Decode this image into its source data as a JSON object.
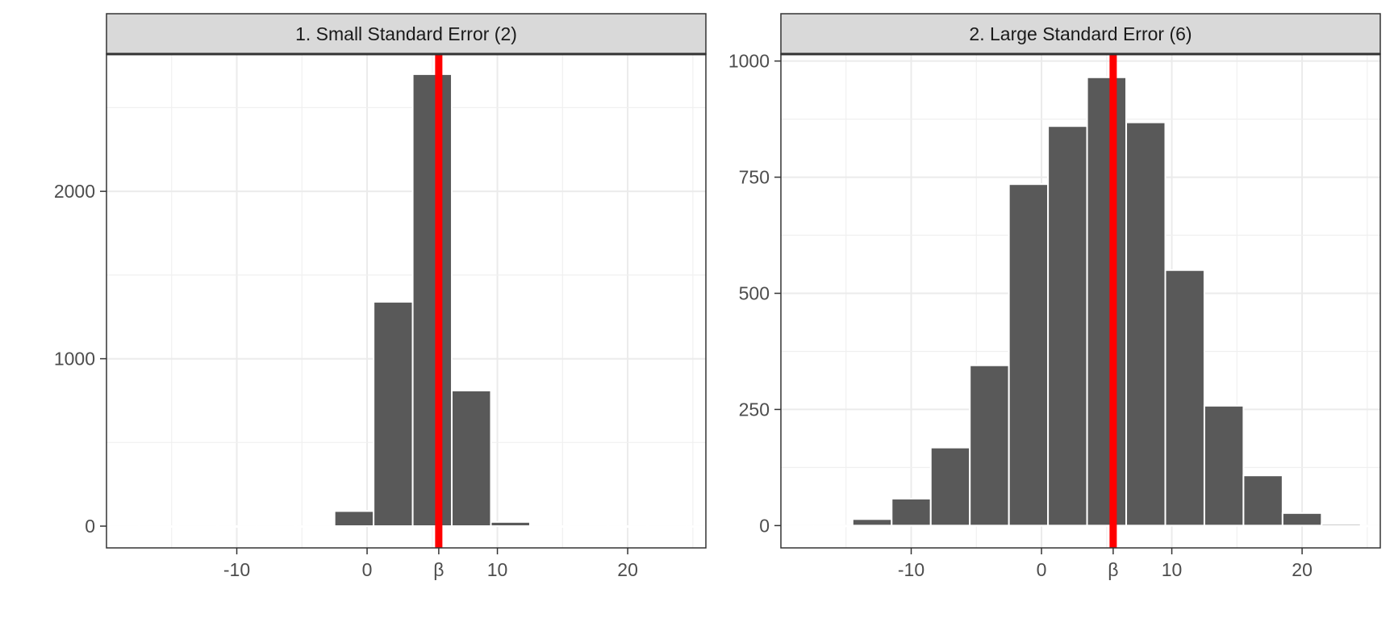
{
  "chart_data": [
    {
      "type": "bar",
      "title": "1. Small Standard Error (2)",
      "xlabel": "",
      "ylabel": "",
      "xlim": [
        -20,
        26
      ],
      "ylim": [
        -130,
        2820
      ],
      "x_ticks": [
        {
          "value": -10,
          "label": "-10"
        },
        {
          "value": 0,
          "label": "0"
        },
        {
          "value": 5.5,
          "label": "β"
        },
        {
          "value": 10,
          "label": "10"
        },
        {
          "value": 20,
          "label": "20"
        }
      ],
      "y_ticks": [
        {
          "value": 0,
          "label": "0"
        },
        {
          "value": 1000,
          "label": "1000"
        },
        {
          "value": 2000,
          "label": "2000"
        }
      ],
      "bin_width": 3,
      "bin_centers": [
        -19,
        -16,
        -13,
        -10,
        -7,
        -4,
        -1,
        2,
        5,
        8,
        11,
        14,
        17,
        20,
        23,
        26
      ],
      "values": [
        0,
        0,
        0,
        0,
        0,
        0,
        90,
        1340,
        2700,
        810,
        25,
        0,
        0,
        0,
        0,
        0
      ],
      "reference_line": {
        "x": 5.5,
        "label": "β",
        "color": "#ff0000"
      },
      "bar_color": "#595959",
      "grid": true
    },
    {
      "type": "bar",
      "title": "2. Large Standard Error (6)",
      "xlabel": "",
      "ylabel": "",
      "xlim": [
        -20,
        26
      ],
      "ylim": [
        -48,
        1015
      ],
      "x_ticks": [
        {
          "value": -10,
          "label": "-10"
        },
        {
          "value": 0,
          "label": "0"
        },
        {
          "value": 5.5,
          "label": "β"
        },
        {
          "value": 10,
          "label": "10"
        },
        {
          "value": 20,
          "label": "20"
        }
      ],
      "y_ticks": [
        {
          "value": 0,
          "label": "0"
        },
        {
          "value": 250,
          "label": "250"
        },
        {
          "value": 500,
          "label": "500"
        },
        {
          "value": 750,
          "label": "750"
        },
        {
          "value": 1000,
          "label": "1000"
        }
      ],
      "bin_width": 3,
      "bin_centers": [
        -19,
        -16,
        -13,
        -10,
        -7,
        -4,
        -1,
        2,
        5,
        8,
        11,
        14,
        17,
        20,
        23,
        26
      ],
      "values": [
        0,
        0,
        14,
        58,
        168,
        345,
        735,
        860,
        965,
        868,
        550,
        258,
        108,
        27,
        4,
        0
      ],
      "reference_line": {
        "x": 5.5,
        "label": "β",
        "color": "#ff0000"
      },
      "bar_color": "#595959",
      "grid": true
    }
  ]
}
